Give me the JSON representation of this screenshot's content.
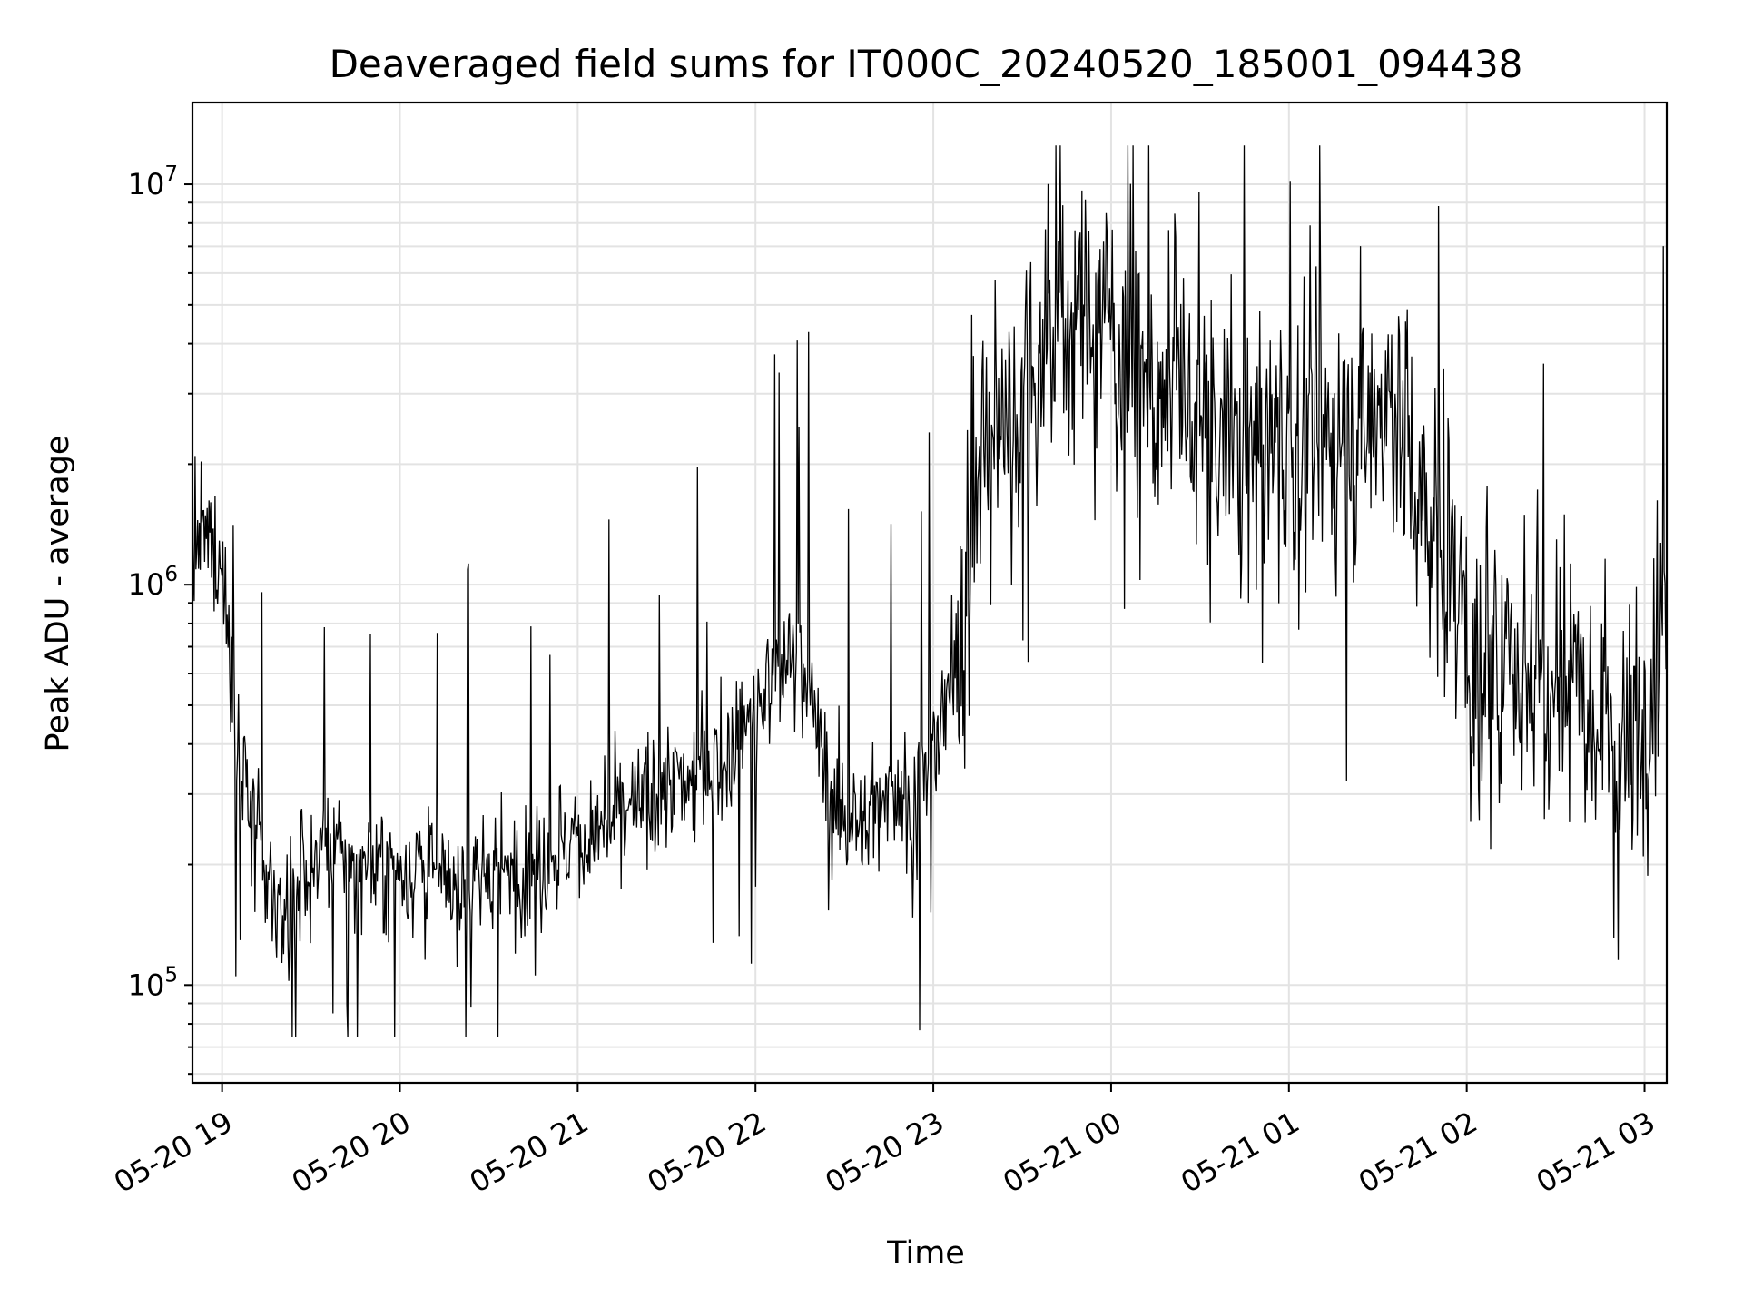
{
  "chart_data": {
    "type": "line",
    "title": "Deaveraged field sums for IT000C_20240520_185001_094438",
    "xlabel": "Time",
    "ylabel": "Peak ADU - average",
    "yscale": "log",
    "ylim": [
      57000,
      16000000
    ],
    "xlim": [
      "2024-05-20 18:50:00",
      "2024-05-21 03:07:30"
    ],
    "grid": "major and minor, light gray",
    "line_color": "#000000",
    "xticks": [
      {
        "time": "2024-05-20 19:00",
        "label": "05-20 19"
      },
      {
        "time": "2024-05-20 20:00",
        "label": "05-20 20"
      },
      {
        "time": "2024-05-20 21:00",
        "label": "05-20 21"
      },
      {
        "time": "2024-05-20 22:00",
        "label": "05-20 22"
      },
      {
        "time": "2024-05-20 23:00",
        "label": "05-20 23"
      },
      {
        "time": "2024-05-21 00:00",
        "label": "05-21 00"
      },
      {
        "time": "2024-05-21 01:00",
        "label": "05-21 01"
      },
      {
        "time": "2024-05-21 02:00",
        "label": "05-21 02"
      },
      {
        "time": "2024-05-21 03:00",
        "label": "05-21 03"
      }
    ],
    "yticks": [
      {
        "value": 100000,
        "base": "10",
        "exp": "5"
      },
      {
        "value": 1000000,
        "base": "10",
        "exp": "6"
      },
      {
        "value": 10000000,
        "base": "10",
        "exp": "7"
      }
    ],
    "series": [
      {
        "x": [
          "2024-05-20 18:50",
          "2024-05-20 18:55",
          "2024-05-20 19:00",
          "2024-05-20 19:05",
          "2024-05-20 19:10",
          "2024-05-20 19:15",
          "2024-05-20 19:20",
          "2024-05-20 19:30",
          "2024-05-20 19:40",
          "2024-05-20 19:50",
          "2024-05-20 20:00",
          "2024-05-20 20:15",
          "2024-05-20 20:30",
          "2024-05-20 20:45",
          "2024-05-20 21:00",
          "2024-05-20 21:15",
          "2024-05-20 21:30",
          "2024-05-20 21:45",
          "2024-05-20 21:55",
          "2024-05-20 22:05",
          "2024-05-20 22:15",
          "2024-05-20 22:25",
          "2024-05-20 22:35",
          "2024-05-20 22:45",
          "2024-05-20 22:55",
          "2024-05-20 23:05",
          "2024-05-20 23:15",
          "2024-05-20 23:25",
          "2024-05-20 23:35",
          "2024-05-20 23:45",
          "2024-05-20 23:55",
          "2024-05-21 00:10",
          "2024-05-21 00:25",
          "2024-05-21 00:40",
          "2024-05-21 00:55",
          "2024-05-21 01:10",
          "2024-05-21 01:25",
          "2024-05-21 01:35",
          "2024-05-21 01:45",
          "2024-05-21 01:55",
          "2024-05-21 02:05",
          "2024-05-21 02:15",
          "2024-05-21 02:25",
          "2024-05-21 02:35",
          "2024-05-21 02:45",
          "2024-05-21 02:55",
          "2024-05-21 03:05",
          "2024-05-21 03:07"
        ],
        "y": [
          1200000,
          1300000,
          1100000,
          420000,
          260000,
          180000,
          150000,
          200000,
          210000,
          190000,
          200000,
          180000,
          190000,
          200000,
          230000,
          260000,
          310000,
          330000,
          420000,
          560000,
          700000,
          300000,
          240000,
          320000,
          280000,
          500000,
          1800000,
          2600000,
          3500000,
          4500000,
          5000000,
          3200000,
          2600000,
          2200000,
          2300000,
          2200000,
          2400000,
          3000000,
          1500000,
          1200000,
          450000,
          650000,
          620000,
          700000,
          480000,
          380000,
          800000,
          750000
        ]
      }
    ]
  }
}
